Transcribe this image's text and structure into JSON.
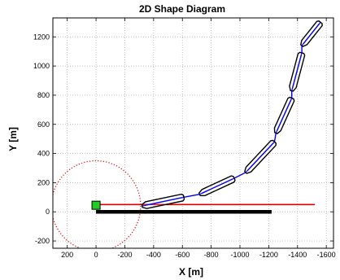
{
  "chart_data": {
    "type": "diagram",
    "title": "2D Shape Diagram",
    "xlabel": "X [m]",
    "ylabel": "Y [m]",
    "x_reversed": true,
    "xlim": [
      300,
      -1650
    ],
    "ylim": [
      -250,
      1330
    ],
    "grid": true,
    "xticks": [
      200,
      0,
      -200,
      -400,
      -600,
      -800,
      -1000,
      -1200,
      -1400,
      -1600
    ],
    "xtick_labels": [
      "200",
      "0",
      "-200",
      "-400",
      "-600",
      "-800",
      "-1000",
      "-1200",
      "-1400",
      "-1600"
    ],
    "yticks": [
      -200,
      0,
      200,
      400,
      600,
      800,
      1000,
      1200
    ],
    "ytick_labels": [
      "-200",
      "0",
      "200",
      "400",
      "600",
      "800",
      "1000",
      "1200"
    ],
    "colors": {
      "segment_outline": "#000000",
      "segment_fill": "#ffffff",
      "centerline": "#0000ff",
      "reference_line": "#e00000",
      "base_bar": "#000000",
      "circle": "#dd1111",
      "start_marker": "#22cc22"
    },
    "circle": {
      "center": [
        0,
        40
      ],
      "radius": 310
    },
    "start_marker": {
      "x": 0,
      "y": 45
    },
    "reference_line": {
      "x1": 0,
      "y1": 50,
      "x2": -1520,
      "y2": 50
    },
    "base_bar": {
      "x1": 0,
      "y1": 0,
      "x2": -1220,
      "y2": 0
    },
    "segments": [
      {
        "start": [
          -320,
          40
        ],
        "end": [
          -610,
          100
        ]
      },
      {
        "start": [
          -720,
          120
        ],
        "end": [
          -960,
          230
        ]
      },
      {
        "start": [
          -1040,
          270
        ],
        "end": [
          -1240,
          480
        ]
      },
      {
        "start": [
          -1250,
          540
        ],
        "end": [
          -1360,
          780
        ]
      },
      {
        "start": [
          -1360,
          830
        ],
        "end": [
          -1430,
          1090
        ]
      },
      {
        "start": [
          -1430,
          1140
        ],
        "end": [
          -1560,
          1300
        ]
      }
    ]
  }
}
